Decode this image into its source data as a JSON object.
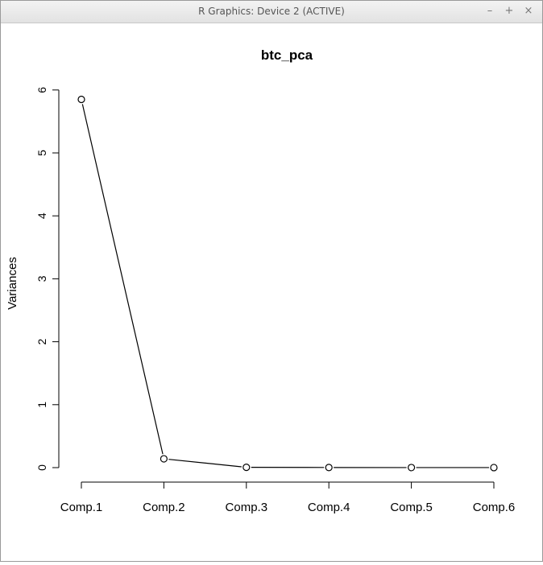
{
  "window": {
    "title": "R Graphics: Device 2 (ACTIVE)",
    "minimize_label": "–",
    "maximize_label": "+",
    "close_label": "×",
    "icons": [
      "minimize-icon",
      "maximize-icon",
      "close-icon"
    ]
  },
  "chart_data": {
    "type": "line",
    "title": "btc_pca",
    "xlabel": "",
    "ylabel": "Variances",
    "categories": [
      "Comp.1",
      "Comp.2",
      "Comp.3",
      "Comp.4",
      "Comp.5",
      "Comp.6"
    ],
    "values": [
      5.85,
      0.14,
      0.005,
      0.002,
      0.001,
      0.0005
    ],
    "ylim": [
      0,
      6
    ],
    "yticks": [
      "0",
      "1",
      "2",
      "3",
      "4",
      "5",
      "6"
    ],
    "marker": "open-circle",
    "grid": false,
    "colors": {
      "line": "#000000",
      "marker": "#000000"
    }
  }
}
